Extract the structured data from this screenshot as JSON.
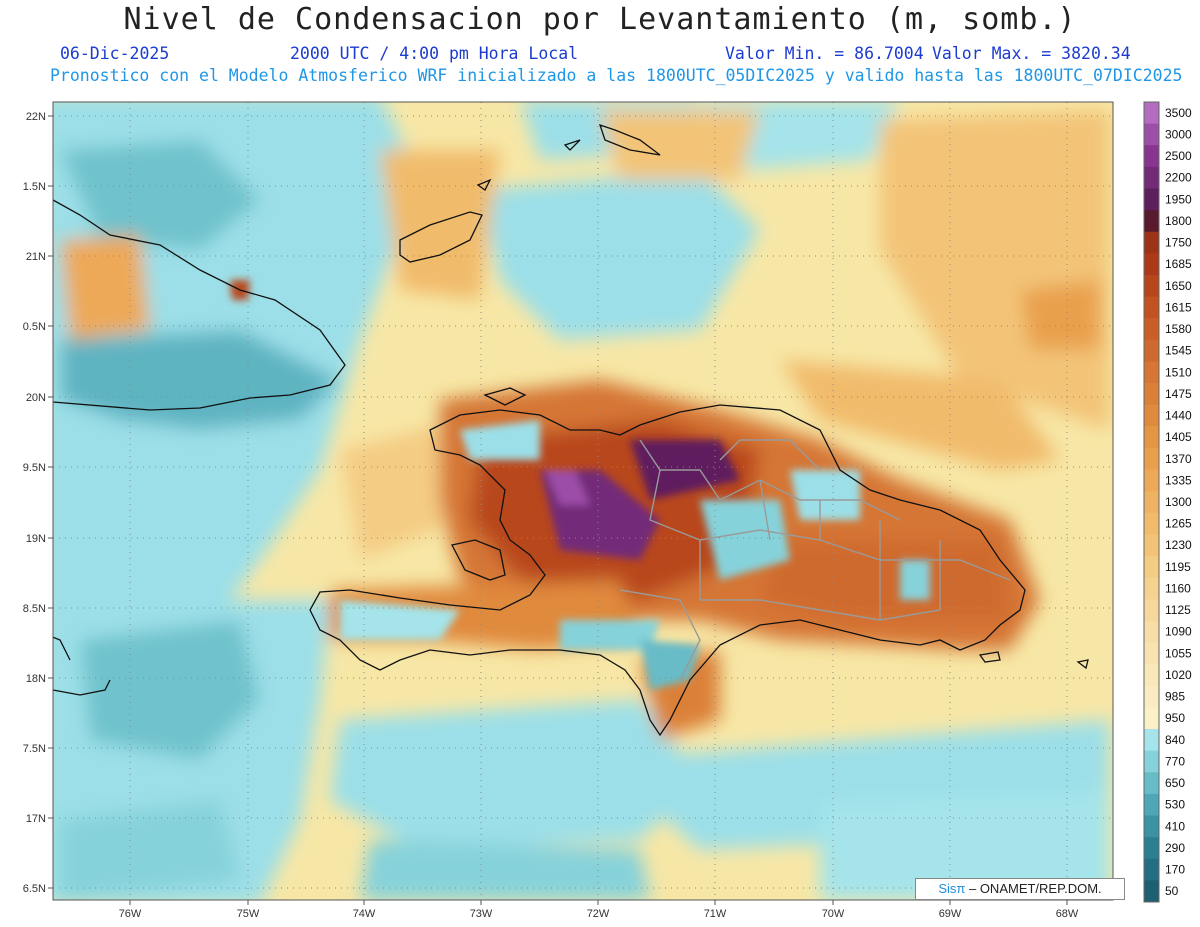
{
  "header": {
    "title": "Nivel de Condensacion por Levantamiento (m, somb.)",
    "date": "06-Dic-2025",
    "time": "2000 UTC / 4:00 pm Hora Local",
    "vmin": "Valor Min. = 86.7004",
    "vmax": "Valor Max. = 3820.34",
    "info": "Pronostico con el Modelo Atmosferico WRF inicializado a las 1800UTC_05DIC2025 y valido hasta las  1800UTC_07DIC2025"
  },
  "axes": {
    "lon_labels": [
      "76W",
      "75W",
      "74W",
      "73W",
      "72W",
      "71W",
      "70W",
      "69W",
      "68W"
    ],
    "lat_labels": [
      "22N",
      "1.5N",
      "21N",
      "0.5N",
      "20N",
      "9.5N",
      "19N",
      "8.5N",
      "18N",
      "7.5N",
      "17N",
      "6.5N"
    ]
  },
  "colorbar": {
    "labels": [
      "3500",
      "3000",
      "2500",
      "2200",
      "1950",
      "1800",
      "1750",
      "1685",
      "1650",
      "1615",
      "1580",
      "1545",
      "1510",
      "1475",
      "1440",
      "1405",
      "1370",
      "1335",
      "1300",
      "1265",
      "1230",
      "1195",
      "1160",
      "1125",
      "1090",
      "1055",
      "1020",
      "985",
      "950",
      "840",
      "770",
      "650",
      "530",
      "410",
      "290",
      "170",
      "50"
    ],
    "colors": [
      "#b36cbf",
      "#9c4ea8",
      "#87358f",
      "#732a78",
      "#5e1f5e",
      "#5a1a2e",
      "#9c3216",
      "#ab3a18",
      "#b8461c",
      "#c25222",
      "#c95e28",
      "#cf6a2e",
      "#d57634",
      "#db8038",
      "#e08a3e",
      "#e59546",
      "#e9a04e",
      "#eda958",
      "#efb262",
      "#f1bb6c",
      "#f3c478",
      "#f4cc84",
      "#f5d290",
      "#f6d89c",
      "#f7dea6",
      "#f8e3b0",
      "#f9e8b8",
      "#faecc0",
      "#fbf0c8",
      "#a4e4ea",
      "#86d2da",
      "#68bcc8",
      "#4ea6b6",
      "#3a92a4",
      "#2c7f92",
      "#236e82",
      "#1c6072"
    ]
  },
  "credit": {
    "brand": "Sisπ",
    "text": " – ONAMET/REP.DOM."
  }
}
